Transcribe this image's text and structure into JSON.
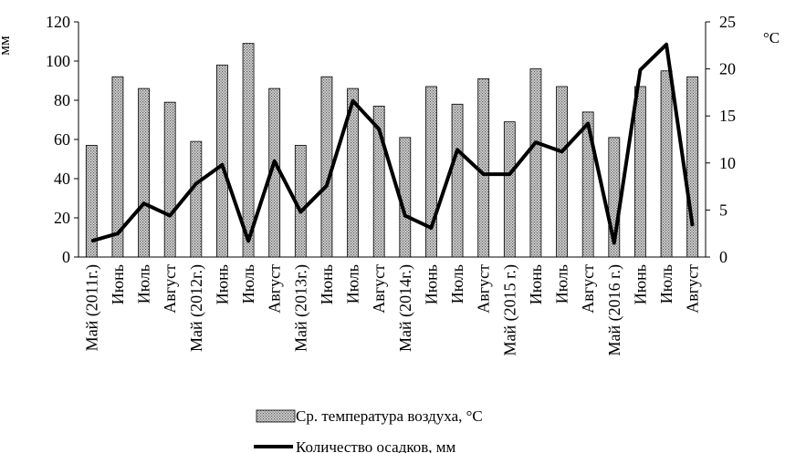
{
  "chart_data": {
    "type": "bar",
    "title": "",
    "categories": [
      "Май  (2011г.)",
      "Июнь",
      "Июль",
      "Август",
      "Май (2012г.)",
      "Июнь",
      "Июль",
      "Август",
      "Май (2013г.)",
      "Июнь",
      "Июль",
      "Август",
      "Май (2014г.)",
      "Июнь",
      "Июль",
      "Август",
      "Май  (2015 г.)",
      "Июнь",
      "Июль",
      "Август",
      "Май  (2016 г.)",
      "Июнь",
      "Июль",
      "Август"
    ],
    "series": [
      {
        "name": "Ср. температура воздуха, °С",
        "type": "bar",
        "axis": "left",
        "values": [
          57,
          92,
          86,
          79,
          59,
          98,
          109,
          86,
          57,
          92,
          86,
          77,
          61,
          87,
          78,
          91,
          69,
          96,
          87,
          74,
          61,
          87,
          95,
          92
        ]
      },
      {
        "name": "Количество осадков, мм",
        "type": "line",
        "axis": "right",
        "values": [
          1.7,
          2.5,
          5.7,
          4.4,
          7.8,
          9.8,
          1.7,
          10.2,
          4.8,
          7.6,
          16.6,
          13.6,
          4.4,
          3.1,
          11.4,
          8.8,
          8.8,
          12.2,
          11.2,
          14.2,
          1.5,
          19.9,
          22.6,
          3.3
        ]
      }
    ],
    "y_left": {
      "label": "мм",
      "ylim": [
        0,
        120
      ],
      "ticks": [
        0,
        20,
        40,
        60,
        80,
        100,
        120
      ]
    },
    "y_right": {
      "label": "°С",
      "ylim": [
        0,
        25
      ],
      "ticks": [
        0,
        5,
        10,
        15,
        20,
        25
      ]
    },
    "grid": false,
    "legend_position": "bottom",
    "colors": {
      "bar_fill": "#b8b8b8",
      "bar_stroke": "#000000",
      "line": "#000000"
    }
  }
}
